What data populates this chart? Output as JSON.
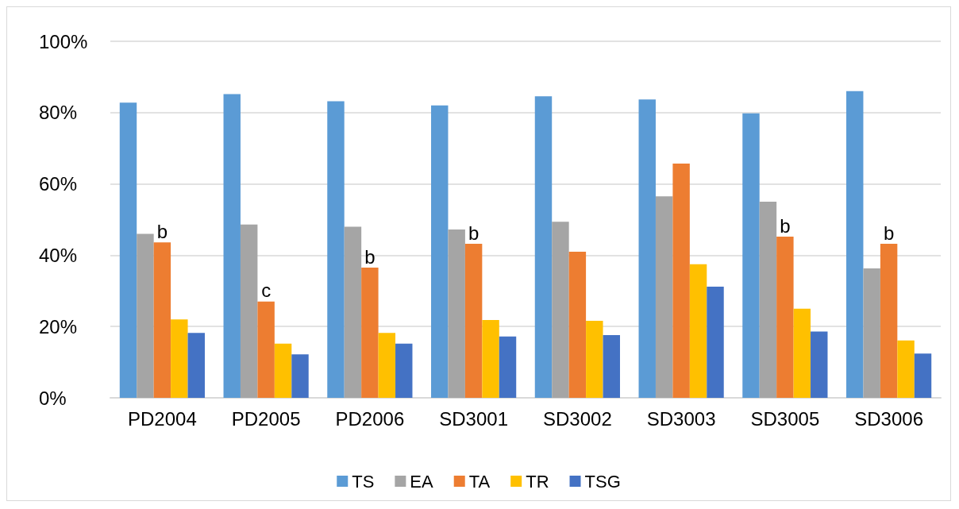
{
  "chart_data": {
    "type": "bar",
    "categories": [
      "PD2004",
      "PD2005",
      "PD2006",
      "SD3001",
      "SD3002",
      "SD3003",
      "SD3005",
      "SD3006"
    ],
    "series": [
      {
        "name": "TS",
        "color": "#5b9bd5",
        "values": [
          82.8,
          85.2,
          83.2,
          82,
          84.6,
          83.7,
          79.8,
          86
        ]
      },
      {
        "name": "EA",
        "color": "#a5a5a5",
        "values": [
          46,
          48.6,
          48,
          47.2,
          49.4,
          56.5,
          55,
          36.3
        ]
      },
      {
        "name": "TA",
        "color": "#ed7d31",
        "values": [
          43.6,
          27,
          36.5,
          43.2,
          41,
          65.7,
          45.2,
          43.2
        ]
      },
      {
        "name": "TR",
        "color": "#ffc000",
        "values": [
          22,
          15.2,
          18.2,
          21.8,
          21.6,
          37.5,
          25,
          16.1
        ]
      },
      {
        "name": "TSG",
        "color": "#4472c4",
        "values": [
          18.2,
          12.2,
          15.2,
          17.2,
          17.6,
          31.2,
          18.6,
          12.4
        ]
      }
    ],
    "annotations": [
      {
        "text": "b",
        "x": "PD2004",
        "y": 43.6
      },
      {
        "text": "c",
        "x": "PD2005",
        "y": 27
      },
      {
        "text": "b",
        "x": "PD2006",
        "y": 36.5
      },
      {
        "text": "b",
        "x": "SD3001",
        "y": 43.2
      },
      {
        "text": "b",
        "x": "SD3005",
        "y": 45.2
      },
      {
        "text": "b",
        "x": "SD3006",
        "y": 43.2
      }
    ],
    "ylim": [
      0,
      100
    ],
    "yticks": [
      {
        "value": 0,
        "label": "0%"
      },
      {
        "value": 20,
        "label": "20%"
      },
      {
        "value": 40,
        "label": "40%"
      },
      {
        "value": 60,
        "label": "60%"
      },
      {
        "value": 80,
        "label": "80%"
      },
      {
        "value": 100,
        "label": "100%"
      }
    ],
    "grid": "y",
    "legend": "bottom"
  }
}
